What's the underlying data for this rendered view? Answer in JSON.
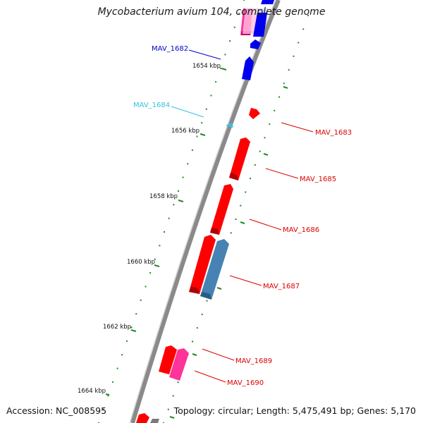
{
  "title": "Mycobacterium avium 104, complete genome",
  "footer": {
    "accession": "Accession: NC_008595",
    "topology": "Topology: circular; Length: 5,475,491 bp; Genes: 5,170"
  },
  "ticks": [
    {
      "label": "1654 kbp"
    },
    {
      "label": "1656 kbp"
    },
    {
      "label": "1658 kbp"
    },
    {
      "label": "1660 kbp"
    },
    {
      "label": "1662 kbp"
    },
    {
      "label": "1664 kbp"
    }
  ],
  "gene_labels": [
    {
      "name": "MAV_1682",
      "color": "#0000cc"
    },
    {
      "name": "MAV_1684",
      "color": "#33c3e0"
    },
    {
      "name": "MAV_1683",
      "color": "#dd0000"
    },
    {
      "name": "MAV_1685",
      "color": "#dd0000"
    },
    {
      "name": "MAV_1686",
      "color": "#dd0000"
    },
    {
      "name": "MAV_1687",
      "color": "#dd0000"
    },
    {
      "name": "MAV_1689",
      "color": "#dd0000"
    },
    {
      "name": "MAV_1690",
      "color": "#dd0000"
    }
  ],
  "colors": {
    "backbone": "#8a8a8a",
    "forward_gene": "#ff0000",
    "reverse_gene": "#0000ee",
    "pink_gene": "#ff3399",
    "steelblue_gene": "#4682b4",
    "tick": "#228b22"
  }
}
